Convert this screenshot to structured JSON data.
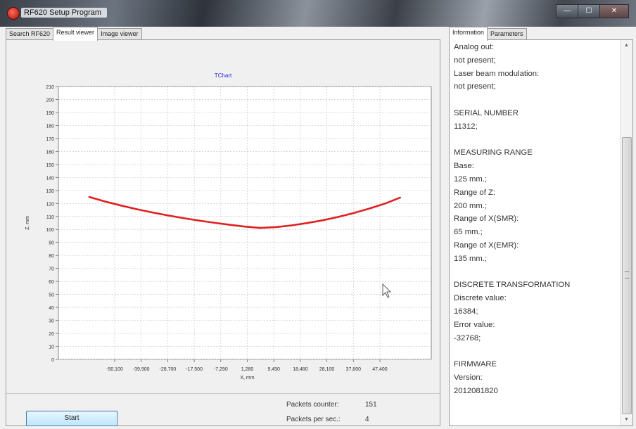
{
  "window": {
    "title": "RF620 Setup Program",
    "controls": {
      "minimize": "—",
      "maximize": "☐",
      "close": "✕"
    }
  },
  "left_tabs": [
    "Search RF620",
    "Result viewer",
    "Image viewer"
  ],
  "right_tabs": [
    "Information",
    "Parameters"
  ],
  "chart": {
    "title": "TChart",
    "xlabel": "X, mm",
    "ylabel": "Z, mm",
    "y_ticks": [
      "210",
      "200",
      "190",
      "180",
      "170",
      "160",
      "150",
      "140",
      "130",
      "120",
      "110",
      "100",
      "90",
      "80",
      "70",
      "60",
      "50",
      "40",
      "30",
      "20",
      "10",
      "0"
    ],
    "x_ticks": [
      "-50,100",
      "-39,900",
      "-28,700",
      "-17,500",
      "-7,290",
      "1,280",
      "9,450",
      "18,480",
      "28,100",
      "37,800",
      "47,400"
    ]
  },
  "chart_data": {
    "type": "line",
    "title": "TChart",
    "xlabel": "X, mm",
    "ylabel": "Z, mm",
    "ylim": [
      0,
      210
    ],
    "xlim": [
      -60,
      60
    ],
    "grid": true,
    "series": [
      {
        "color": "#e02020",
        "x": [
          -50.1,
          -45,
          -40,
          -35,
          -30,
          -25,
          -20,
          -15,
          -10,
          -5,
          0,
          5,
          10,
          15,
          20,
          25,
          30,
          35,
          40,
          45,
          50
        ],
        "y": [
          125,
          121.5,
          118.5,
          115.7,
          113.2,
          110.9,
          108.8,
          106.9,
          105.2,
          103.6,
          102.2,
          101.2,
          101.8,
          103.1,
          104.9,
          107,
          109.6,
          112.6,
          116,
          119.8,
          124.5
        ]
      }
    ]
  },
  "status": {
    "start_label": "Start",
    "packets_counter_label": "Packets counter:",
    "packets_counter_value": "151",
    "packets_per_sec_label": "Packets per sec.:",
    "packets_per_sec_value": "4"
  },
  "info_lines": [
    "Analog out:",
    "not present;",
    "Laser beam modulation:",
    "not present;",
    "",
    "SERIAL NUMBER",
    "11312;",
    "",
    "MEASURING RANGE",
    "Base:",
    "125 mm.;",
    "Range of Z:",
    "200 mm.;",
    "Range of X(SMR):",
    "65 mm.;",
    "Range of X(EMR):",
    "135 mm.;",
    "",
    "DISCRETE TRANSFORMATION",
    "Discrete value:",
    "16384;",
    "Error value:",
    "-32768;",
    "",
    "FIRMWARE",
    "Version:",
    "2012081820"
  ],
  "scrollbar": {
    "up_arrow": "▲",
    "down_arrow": "▼"
  }
}
